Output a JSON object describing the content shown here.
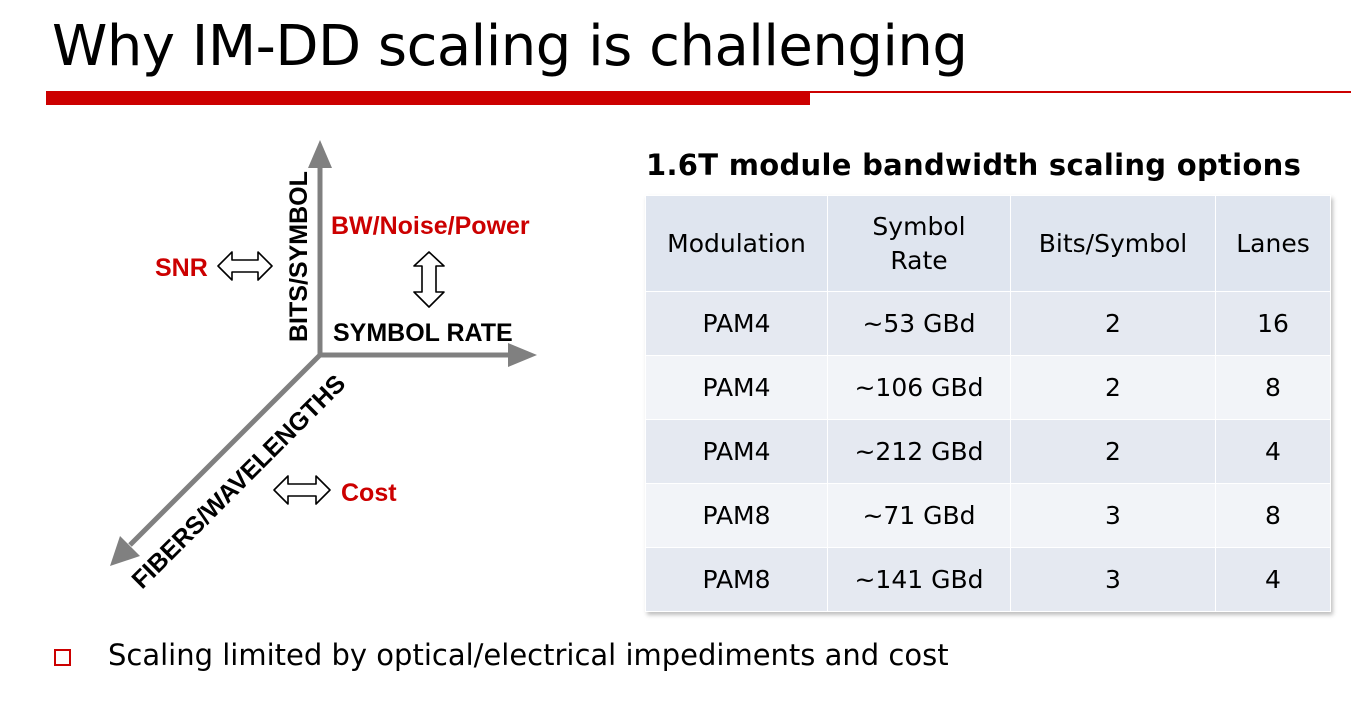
{
  "slide": {
    "title": "Why IM-DD scaling is challenging",
    "accent_color": "#cc0000"
  },
  "diagram": {
    "axis_vertical": "BITS/SYMBOL",
    "axis_horizontal": "SYMBOL RATE",
    "axis_diagonal": "FIBERS/WAVELENGTHS",
    "tradeoff_vertical": "SNR",
    "tradeoff_horizontal": "BW/Noise/Power",
    "tradeoff_diagonal": "Cost",
    "axis_color": "#808080",
    "tradeoff_color": "#cc0000",
    "icons": [
      "double-arrow-horizontal-icon",
      "double-arrow-vertical-icon"
    ]
  },
  "table": {
    "title": "1.6T module bandwidth scaling options",
    "headers": [
      "Modulation",
      "Symbol\nRate",
      "Bits/Symbol",
      "Lanes"
    ],
    "rows": [
      [
        "PAM4",
        "~53 GBd",
        "2",
        "16"
      ],
      [
        "PAM4",
        "~106 GBd",
        "2",
        "8"
      ],
      [
        "PAM4",
        "~212 GBd",
        "2",
        "4"
      ],
      [
        "PAM8",
        "~71 GBd",
        "3",
        "8"
      ],
      [
        "PAM8",
        "~141 GBd",
        "3",
        "4"
      ]
    ]
  },
  "bullets": [
    "Scaling limited by optical/electrical impediments and cost"
  ]
}
